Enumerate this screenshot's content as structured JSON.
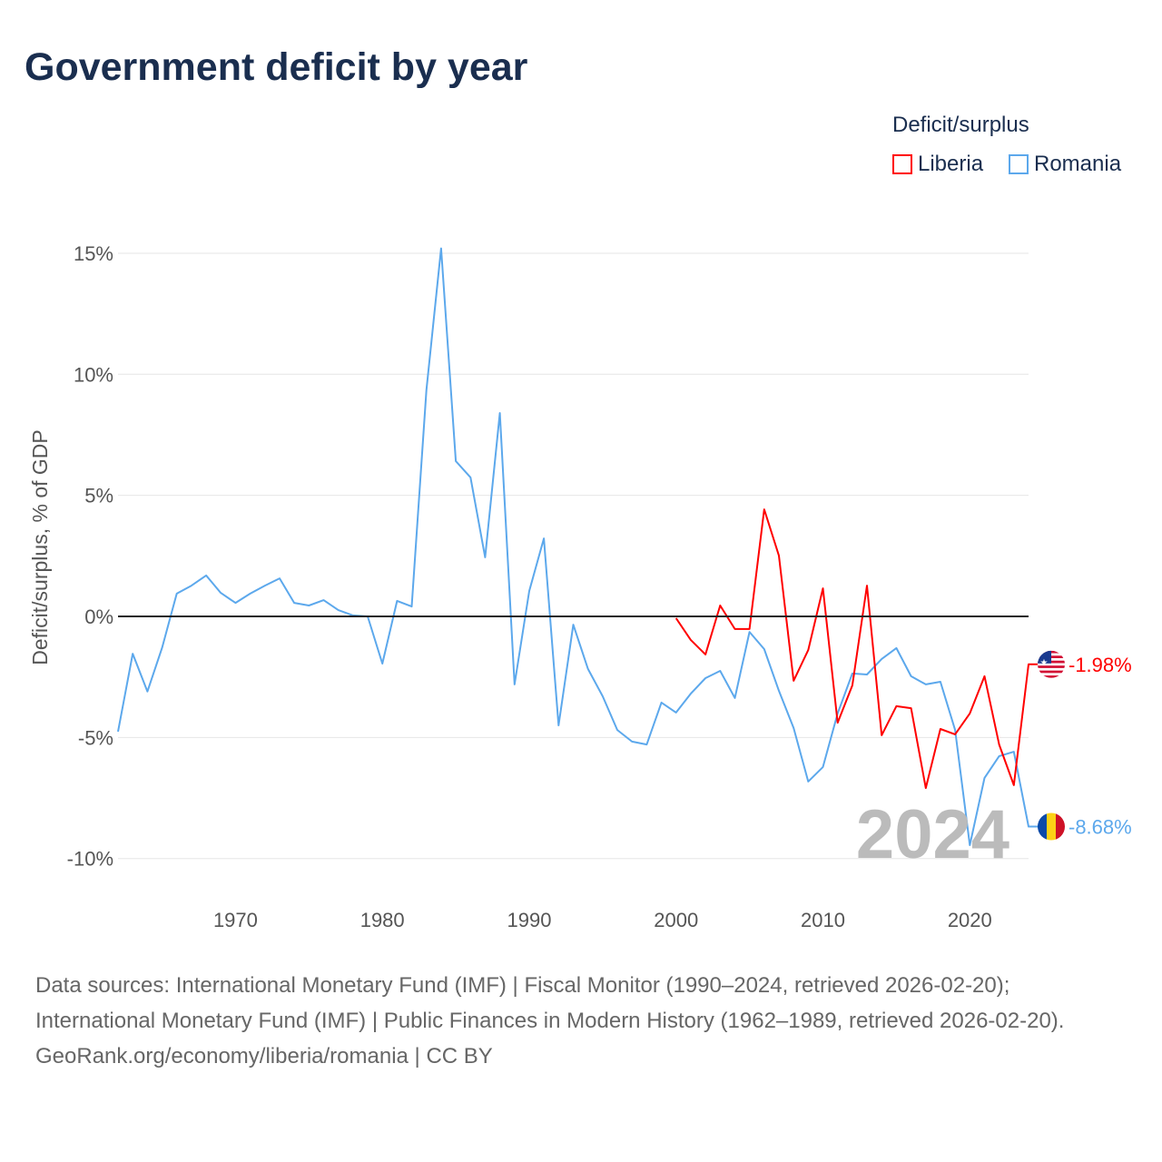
{
  "title": "Government deficit by year",
  "legend": {
    "title": "Deficit/surplus",
    "items": [
      {
        "name": "Liberia",
        "color": "#ff0000"
      },
      {
        "name": "Romania",
        "color": "#5ca8ec"
      }
    ]
  },
  "year_watermark": "2024",
  "chart_data": {
    "type": "line",
    "title": "Government deficit by year",
    "xlabel": "",
    "ylabel": "Deficit/surplus, % of GDP",
    "xlim": [
      1962,
      2024
    ],
    "ylim": [
      -11.5,
      15.5
    ],
    "xticks": [
      1970,
      1980,
      1990,
      2000,
      2010,
      2020
    ],
    "yticks": [
      {
        "v": 15,
        "label": "15%"
      },
      {
        "v": 10,
        "label": "10%"
      },
      {
        "v": 5,
        "label": "5%"
      },
      {
        "v": 0,
        "label": "0%"
      },
      {
        "v": -5,
        "label": "-5%"
      },
      {
        "v": -10,
        "label": "-10%"
      }
    ],
    "grid": true,
    "legend_position": "top-right",
    "series": [
      {
        "name": "Romania",
        "color": "#5ca8ec",
        "end_label": "-8.68%",
        "start_year": 1962,
        "values": [
          -4.76,
          -1.54,
          -3.1,
          -1.3,
          0.94,
          1.27,
          1.69,
          0.97,
          0.56,
          0.94,
          1.27,
          1.57,
          0.56,
          0.45,
          0.67,
          0.26,
          0.04,
          0,
          -1.95,
          0.64,
          0.41,
          9.34,
          15.2,
          6.41,
          5.74,
          2.44,
          8.4,
          -2.81,
          1.05,
          3.22,
          -4.5,
          -0.34,
          -2.17,
          -3.3,
          -4.69,
          -5.17,
          -5.29,
          -3.56,
          -3.97,
          -3.19,
          -2.55,
          -2.25,
          -3.37,
          -0.64,
          -1.35,
          -3.07,
          -4.61,
          -6.82,
          -6.22,
          -4.01,
          -2.36,
          -2.4,
          -1.76,
          -1.31,
          -2.47,
          -2.81,
          -2.7,
          -4.69,
          -9.45,
          -6.67,
          -5.77,
          -5.59,
          -8.68
        ]
      },
      {
        "name": "Liberia",
        "color": "#ff0000",
        "end_label": "-1.98%",
        "start_year": 2000,
        "values": [
          -0.07,
          -0.97,
          -1.57,
          0.45,
          -0.52,
          -0.52,
          4.42,
          2.51,
          -2.66,
          -1.39,
          1.16,
          -4.39,
          -2.85,
          1.27,
          -4.91,
          -3.71,
          -3.79,
          -7.09,
          -4.65,
          -4.87,
          -4.01,
          -2.47,
          -5.29,
          -6.97,
          -1.98
        ]
      }
    ]
  },
  "footer": {
    "sources": "Data sources: International Monetary Fund (IMF) | Fiscal Monitor (1990–2024, retrieved 2026-02-20); International Monetary Fund (IMF) | Public Finances in Modern History (1962–1989, retrieved 2026-02-20).",
    "link": "GeoRank.org/economy/liberia/romania | CC BY"
  }
}
